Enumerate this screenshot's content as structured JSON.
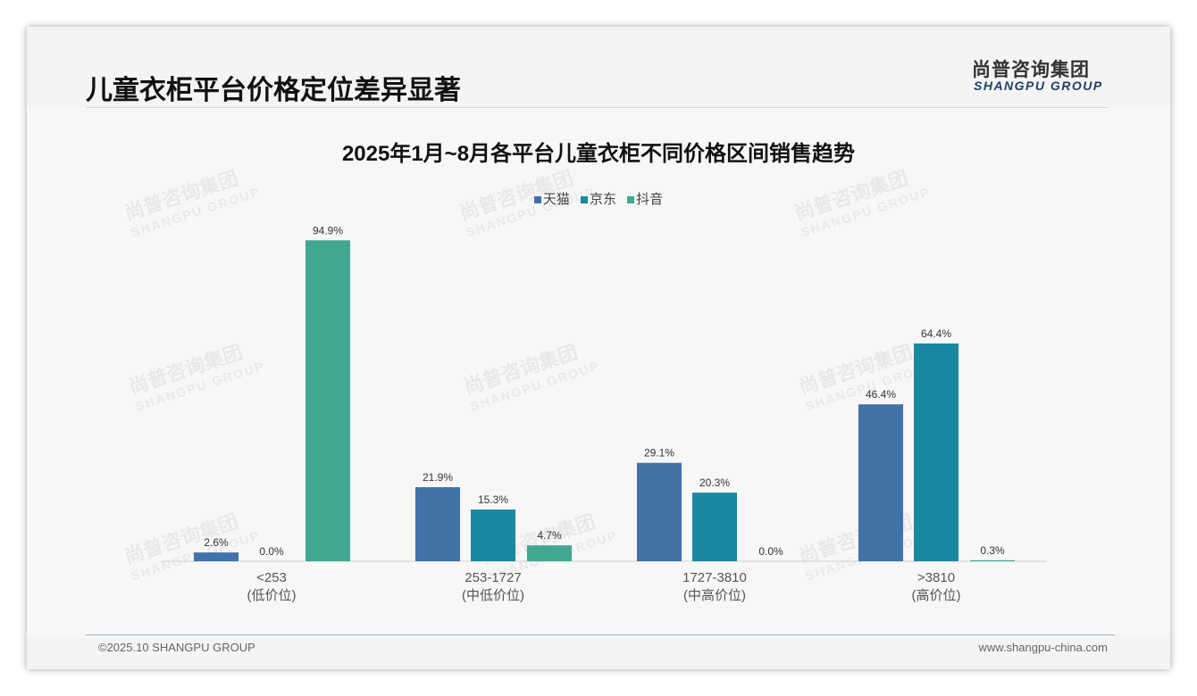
{
  "header": {
    "title": "儿童衣柜平台价格定位差异显著",
    "logo_cn": "尚普咨询集团",
    "logo_en": "SHANGPU GROUP"
  },
  "footer": {
    "copyright": "©2025.10 SHANGPU GROUP",
    "website": "www.shangpu-china.com"
  },
  "chart_data": {
    "type": "bar",
    "title": "2025年1月~8月各平台儿童衣柜不同价格区间销售趋势",
    "categories": [
      "<253",
      "253-1727",
      "1727-3810",
      ">3810"
    ],
    "category_sublabels": [
      "(低价位)",
      "(中低价位)",
      "(中高价位)",
      "(高价位)"
    ],
    "series": [
      {
        "name": "天猫",
        "color": "#4272a8",
        "values": [
          2.6,
          21.9,
          29.1,
          46.4
        ]
      },
      {
        "name": "京东",
        "color": "#1a88a0",
        "values": [
          0.0,
          15.3,
          20.3,
          64.4
        ]
      },
      {
        "name": "抖音",
        "color": "#41a692",
        "values": [
          94.9,
          4.7,
          0.0,
          0.3
        ]
      }
    ],
    "value_suffix": "%",
    "ylim": [
      0,
      100
    ],
    "legend": "top-center",
    "grid": false
  }
}
